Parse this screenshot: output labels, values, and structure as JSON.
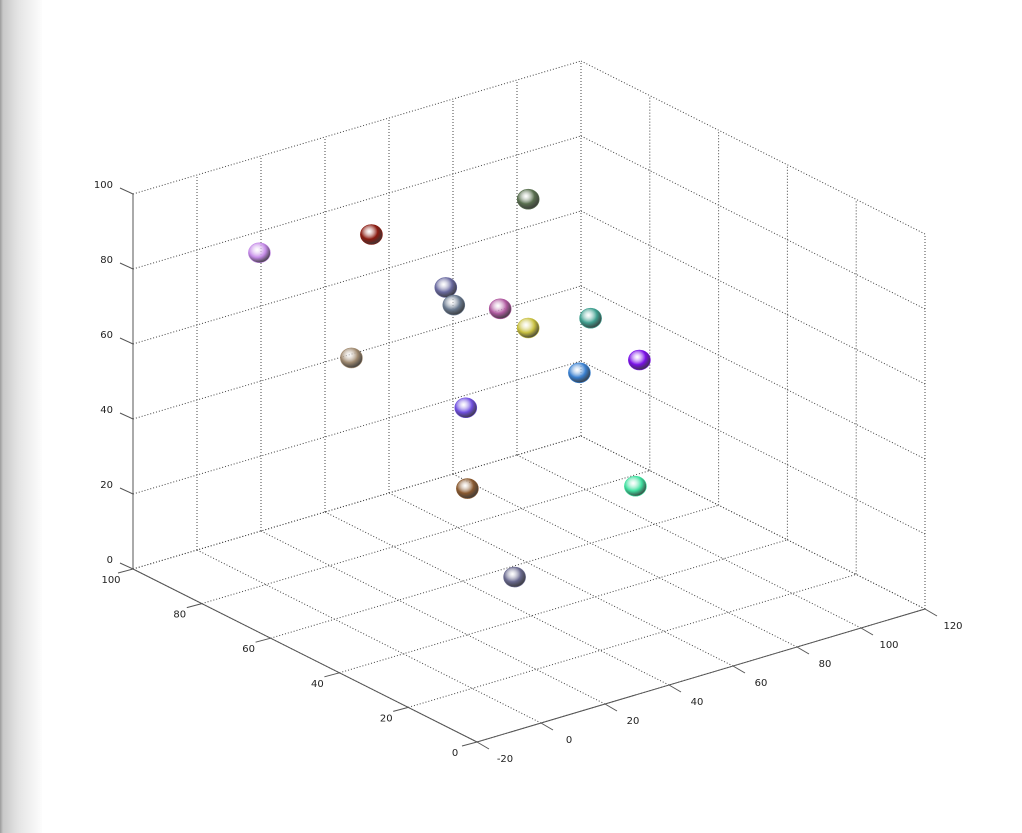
{
  "chart_data": {
    "type": "scatter",
    "dimensions": 3,
    "title": "",
    "xlabel": "",
    "ylabel": "",
    "zlabel": "",
    "xlim": [
      -20,
      120
    ],
    "ylim": [
      0,
      100
    ],
    "zlim": [
      0,
      100
    ],
    "xticks": [
      "-20",
      "0",
      "20",
      "40",
      "60",
      "80",
      "100",
      "120"
    ],
    "yticks": [
      "0",
      "20",
      "40",
      "60",
      "80",
      "100"
    ],
    "zticks": [
      "0",
      "20",
      "40",
      "60",
      "80",
      "100"
    ],
    "grid": true,
    "marker": "sphere",
    "points": [
      {
        "x": -2,
        "y": 80,
        "z": 89,
        "color": "#c58be8"
      },
      {
        "x": 33,
        "y": 80,
        "z": 85,
        "color": "#8a1a10"
      },
      {
        "x": 82,
        "y": 80,
        "z": 82,
        "color": "#5a7050"
      },
      {
        "x": 24,
        "y": 50,
        "z": 87,
        "color": "#6a6aa0"
      },
      {
        "x": 48,
        "y": 70,
        "z": 67,
        "color": "#6a7a90"
      },
      {
        "x": 41,
        "y": 50,
        "z": 77,
        "color": "#b05aa0"
      },
      {
        "x": 39,
        "y": 40,
        "z": 77,
        "color": "#c8c040"
      },
      {
        "x": 80,
        "y": 60,
        "z": 60,
        "color": "#40a090"
      },
      {
        "x": 63,
        "y": 30,
        "z": 67,
        "color": "#7a10e8"
      },
      {
        "x": 55,
        "y": 40,
        "z": 61,
        "color": "#3a80d0"
      },
      {
        "x": 16,
        "y": 70,
        "z": 61,
        "color": "#a08a70"
      },
      {
        "x": 41,
        "y": 60,
        "z": 46,
        "color": "#7050e0"
      },
      {
        "x": 20,
        "y": 40,
        "z": 39,
        "color": "#8a5a30"
      },
      {
        "x": 51,
        "y": 20,
        "z": 41,
        "color": "#40e0a0"
      },
      {
        "x": 24,
        "y": 30,
        "z": 19,
        "color": "#6a6a90"
      }
    ]
  }
}
